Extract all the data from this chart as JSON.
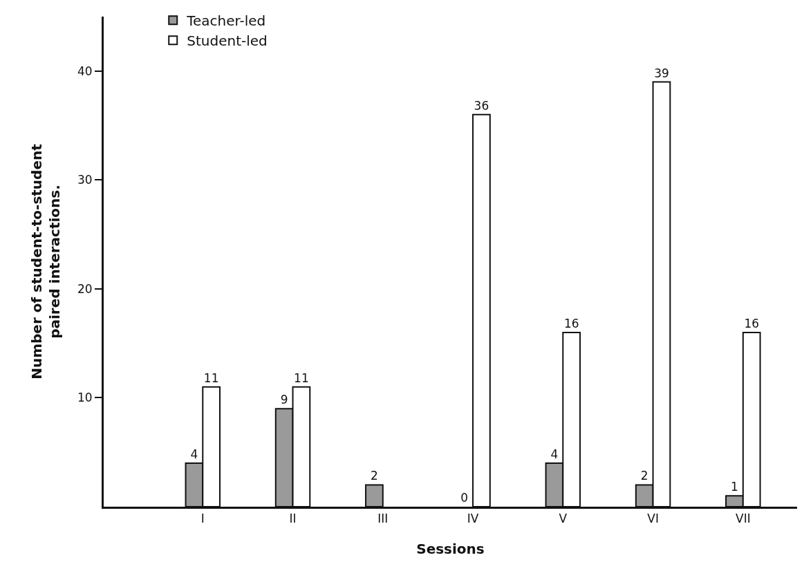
{
  "chart_data": {
    "type": "bar",
    "xlabel": "Sessions",
    "ylabel": "Number of student-to-student\npaired interactions.",
    "categories": [
      "I",
      "II",
      "III",
      "IV",
      "V",
      "VI",
      "VII"
    ],
    "series": [
      {
        "name": "Teacher-led",
        "color": "#9a9a9a",
        "values": [
          4,
          9,
          2,
          0,
          4,
          2,
          1
        ]
      },
      {
        "name": "Student-led",
        "color": "#ffffff",
        "values": [
          11,
          11,
          null,
          36,
          16,
          39,
          16
        ]
      }
    ],
    "data_labels": true,
    "ylim": [
      0,
      45
    ],
    "yticks": [
      10,
      20,
      30,
      40
    ],
    "grid": false,
    "legend": "top left"
  }
}
